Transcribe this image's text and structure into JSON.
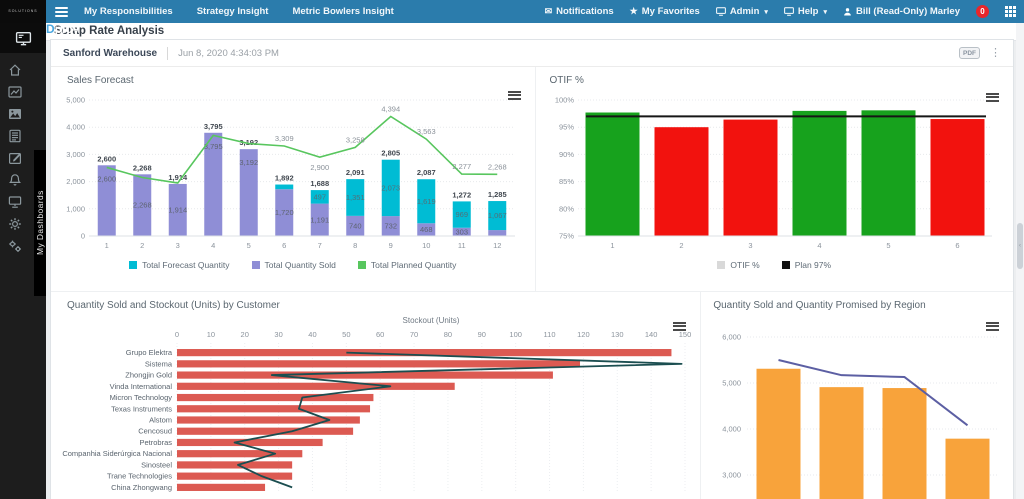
{
  "navbar": {
    "logo_text": "Dploy",
    "logo_sub": "SOLUTIONS",
    "items": [
      "My Responsibilities",
      "Strategy Insight",
      "Metric Bowlers Insight"
    ],
    "right": {
      "notifications": "Notifications",
      "favorites": "My Favorites",
      "admin": "Admin",
      "help": "Help",
      "user": "Bill (Read-Only) Marley",
      "badge": "0"
    },
    "color": "#2b7cac"
  },
  "sidebar": {
    "tab_label": "My Dashboards",
    "icons": [
      "home-icon",
      "line-chart-icon",
      "image-chart-icon",
      "report-icon",
      "compose-icon",
      "bell-icon",
      "presentation-icon",
      "gear-icon",
      "gears-icon"
    ]
  },
  "page": {
    "title": "Scrap Rate Analysis"
  },
  "card": {
    "header": {
      "title": "Sanford Warehouse",
      "timestamp": "Jun 8, 2020 4:34:03 PM",
      "pdf_label": "PDF"
    }
  },
  "chart_data": [
    {
      "type": "bar",
      "title": "Sales Forecast",
      "categories": [
        "1",
        "2",
        "3",
        "4",
        "5",
        "6",
        "7",
        "8",
        "9",
        "10",
        "11",
        "12"
      ],
      "series": [
        {
          "name": "Total Quantity Sold",
          "kind": "bar",
          "color": "#8f8ed6",
          "values": [
            2600,
            2268,
            1914,
            3795,
            3192,
            1720,
            1191,
            740,
            732,
            468,
            303,
            218
          ]
        },
        {
          "name": "Total Forecast Quantity",
          "kind": "bar",
          "color": "#00bcd4",
          "values": [
            0,
            0,
            0,
            0,
            0,
            172,
            497,
            1351,
            2073,
            1619,
            969,
            1067
          ]
        },
        {
          "name": "Total Planned Quantity",
          "kind": "line",
          "color": "#58c65e",
          "values": [
            2520,
            2150,
            1950,
            3700,
            3400,
            3309,
            2900,
            3258,
            4394,
            3563,
            2277,
            2268
          ]
        }
      ],
      "totals": [
        2600,
        2268,
        1914,
        3795,
        3192,
        1892,
        1688,
        2091,
        2805,
        2087,
        1272,
        1285
      ],
      "line_labels_from": 5,
      "ylim": [
        0,
        5000
      ],
      "ytick_step": 1000,
      "legend": [
        {
          "label": "Total Forecast Quantity",
          "color": "#00bcd4"
        },
        {
          "label": "Total Quantity Sold",
          "color": "#8f8ed6"
        },
        {
          "label": "Total Planned Quantity",
          "color": "#58c65e"
        }
      ],
      "grid": "dotted-horizontal",
      "legend_position": "bottom"
    },
    {
      "type": "bar",
      "title": "OTIF %",
      "categories": [
        "1",
        "2",
        "3",
        "4",
        "5",
        "6"
      ],
      "values": [
        97.7,
        95.0,
        96.4,
        98.0,
        98.1,
        96.5
      ],
      "bar_colors": [
        "#17a21d",
        "#f2120e",
        "#f2120e",
        "#17a21d",
        "#17a21d",
        "#f2120e"
      ],
      "plan_value": 97,
      "plan_color": "#161616",
      "ylim": [
        75,
        100
      ],
      "ytick_step": 5,
      "ytick_suffix": "%",
      "legend": [
        {
          "label": "OTIF %",
          "color": "#d9d9d9"
        },
        {
          "label": "Plan 97%",
          "color": "#111111"
        }
      ],
      "grid": "dotted-horizontal",
      "legend_position": "bottom"
    },
    {
      "type": "bar",
      "title": "Quantity Sold and Stockout (Units) by Customer",
      "orientation": "horizontal",
      "axis_label": "Stockout (Units)",
      "xlim": [
        0,
        150
      ],
      "xtick_step": 10,
      "categories": [
        "Grupo Elektra",
        "Sistema",
        "Zhongjin Gold",
        "Vinda International",
        "Micron Technology",
        "Texas Instruments",
        "Alstom",
        "Cencosud",
        "Petrobras",
        "Companhia Siderúrgica Nacional",
        "Sinosteel",
        "Trane Technologies",
        "China Zhongwang"
      ],
      "series": [
        {
          "name": "Quantity Sold",
          "kind": "bar",
          "color": "#dc5a52",
          "values": [
            146,
            119,
            111,
            82,
            58,
            57,
            54,
            52,
            43,
            37,
            34,
            34,
            26
          ]
        },
        {
          "name": "Stockout",
          "kind": "line",
          "color": "#1b4e50",
          "values": [
            50,
            149,
            28,
            63,
            37,
            36,
            45,
            34,
            17,
            29,
            18,
            25,
            34
          ]
        }
      ],
      "grid": "dotted-vertical"
    },
    {
      "type": "bar",
      "title": "Quantity Sold and Quantity Promised by Region",
      "categories": [
        "",
        "",
        "",
        ""
      ],
      "series": [
        {
          "name": "Quantity Sold",
          "kind": "bar",
          "color": "#f8a33b",
          "values": [
            5310,
            4910,
            4890,
            3790
          ]
        },
        {
          "name": "Quantity Promised",
          "kind": "line",
          "color": "#5c5fa3",
          "values": [
            5500,
            5170,
            5130,
            4080
          ]
        }
      ],
      "ylim": [
        2500,
        6000
      ],
      "yticks": [
        3000,
        4000,
        5000,
        6000
      ],
      "grid": "dotted-horizontal",
      "note_cropped_bottom": true
    }
  ]
}
